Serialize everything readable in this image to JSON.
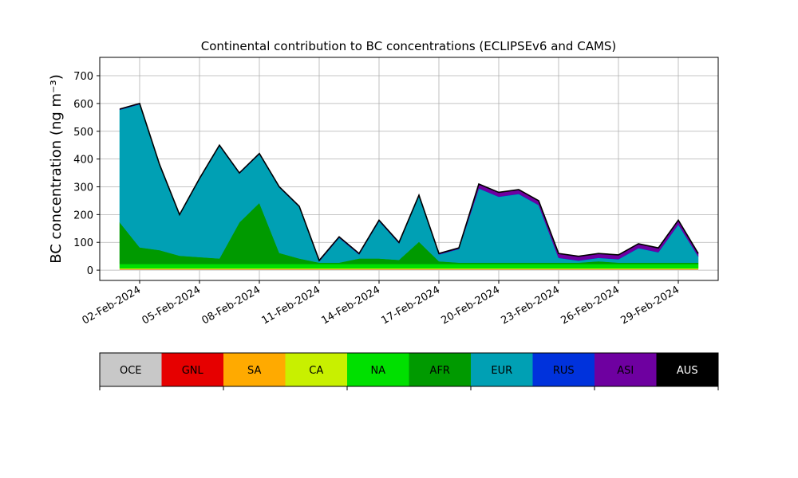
{
  "chart_data": {
    "type": "stacked_area",
    "title": "Continental contribution to BC concentrations (ECLIPSEv6 and CAMS)",
    "y_label": "BC concentration (ng m⁻³)",
    "x": [
      "2024-02-01",
      "2024-02-02",
      "2024-02-03",
      "2024-02-04",
      "2024-02-05",
      "2024-02-06",
      "2024-02-07",
      "2024-02-08",
      "2024-02-09",
      "2024-02-10",
      "2024-02-11",
      "2024-02-12",
      "2024-02-13",
      "2024-02-14",
      "2024-02-15",
      "2024-02-16",
      "2024-02-17",
      "2024-02-18",
      "2024-02-19",
      "2024-02-20",
      "2024-02-21",
      "2024-02-22",
      "2024-02-23",
      "2024-02-24",
      "2024-02-25",
      "2024-02-26",
      "2024-02-27",
      "2024-02-28",
      "2024-02-29",
      "2024-03-01"
    ],
    "series": [
      {
        "name": "OCE",
        "color": "#c8c8c8",
        "values": [
          3,
          3,
          3,
          3,
          3,
          3,
          3,
          3,
          3,
          3,
          3,
          3,
          3,
          3,
          3,
          3,
          3,
          3,
          3,
          3,
          3,
          3,
          3,
          3,
          3,
          3,
          3,
          3,
          3,
          3
        ]
      },
      {
        "name": "GNL",
        "color": "#e60000",
        "values": [
          0,
          0,
          0,
          0,
          0,
          0,
          0,
          0,
          0,
          0,
          0,
          0,
          0,
          0,
          0,
          0,
          0,
          0,
          0,
          0,
          0,
          0,
          0,
          0,
          0,
          0,
          0,
          0,
          0,
          0
        ]
      },
      {
        "name": "SA",
        "color": "#ffaa00",
        "values": [
          1,
          1,
          1,
          1,
          1,
          1,
          1,
          1,
          1,
          1,
          1,
          1,
          1,
          1,
          1,
          1,
          1,
          1,
          1,
          1,
          1,
          1,
          1,
          1,
          1,
          1,
          1,
          1,
          1,
          1
        ]
      },
      {
        "name": "CA",
        "color": "#c8f000",
        "values": [
          3,
          3,
          3,
          3,
          3,
          3,
          3,
          3,
          3,
          3,
          3,
          3,
          3,
          3,
          3,
          3,
          3,
          3,
          3,
          3,
          3,
          3,
          3,
          3,
          3,
          3,
          3,
          3,
          3,
          3
        ]
      },
      {
        "name": "NA",
        "color": "#00e000",
        "values": [
          15,
          15,
          15,
          15,
          15,
          15,
          15,
          15,
          15,
          15,
          15,
          15,
          15,
          15,
          15,
          15,
          15,
          15,
          15,
          15,
          15,
          15,
          15,
          15,
          15,
          15,
          15,
          15,
          15,
          15
        ]
      },
      {
        "name": "AFR",
        "color": "#009a00",
        "values": [
          150,
          60,
          50,
          30,
          25,
          20,
          150,
          220,
          40,
          20,
          5,
          5,
          20,
          20,
          15,
          80,
          10,
          5,
          5,
          5,
          5,
          5,
          5,
          5,
          10,
          5,
          5,
          5,
          5,
          5
        ]
      },
      {
        "name": "EUR",
        "color": "#00a0b4",
        "values": [
          405,
          515,
          305,
          145,
          280,
          405,
          175,
          175,
          235,
          185,
          4,
          89,
          14,
          134,
          59,
          164,
          24,
          49,
          267,
          237,
          247,
          207,
          17,
          7,
          12,
          12,
          52,
          37,
          137,
          22
        ]
      },
      {
        "name": "RUS",
        "color": "#0032dc",
        "values": [
          1,
          1,
          1,
          1,
          1,
          1,
          1,
          1,
          1,
          1,
          1,
          1,
          1,
          1,
          1,
          1,
          1,
          1,
          1,
          1,
          1,
          1,
          1,
          1,
          1,
          1,
          1,
          1,
          1,
          1
        ]
      },
      {
        "name": "ASI",
        "color": "#6e00a0",
        "values": [
          2,
          2,
          2,
          2,
          2,
          2,
          2,
          2,
          2,
          2,
          3,
          3,
          3,
          3,
          3,
          3,
          3,
          3,
          15,
          15,
          15,
          15,
          15,
          15,
          15,
          15,
          15,
          15,
          15,
          10
        ]
      },
      {
        "name": "AUS",
        "color": "#000000",
        "values": [
          0,
          0,
          0,
          0,
          0,
          0,
          0,
          0,
          0,
          0,
          0,
          0,
          0,
          0,
          0,
          0,
          0,
          0,
          0,
          0,
          0,
          0,
          0,
          0,
          0,
          0,
          0,
          0,
          0,
          0
        ]
      }
    ],
    "xlim": [
      "2024-01-31",
      "2024-03-02"
    ],
    "xticks": [
      {
        "value": "2024-02-02",
        "label": "02-Feb-2024"
      },
      {
        "value": "2024-02-05",
        "label": "05-Feb-2024"
      },
      {
        "value": "2024-02-08",
        "label": "08-Feb-2024"
      },
      {
        "value": "2024-02-11",
        "label": "11-Feb-2024"
      },
      {
        "value": "2024-02-14",
        "label": "14-Feb-2024"
      },
      {
        "value": "2024-02-17",
        "label": "17-Feb-2024"
      },
      {
        "value": "2024-02-20",
        "label": "20-Feb-2024"
      },
      {
        "value": "2024-02-23",
        "label": "23-Feb-2024"
      },
      {
        "value": "2024-02-26",
        "label": "26-Feb-2024"
      },
      {
        "value": "2024-02-29",
        "label": "29-Feb-2024"
      }
    ],
    "ylim": [
      -37,
      766
    ],
    "yticks": [
      0,
      100,
      200,
      300,
      400,
      500,
      600,
      700
    ],
    "grid": true
  }
}
